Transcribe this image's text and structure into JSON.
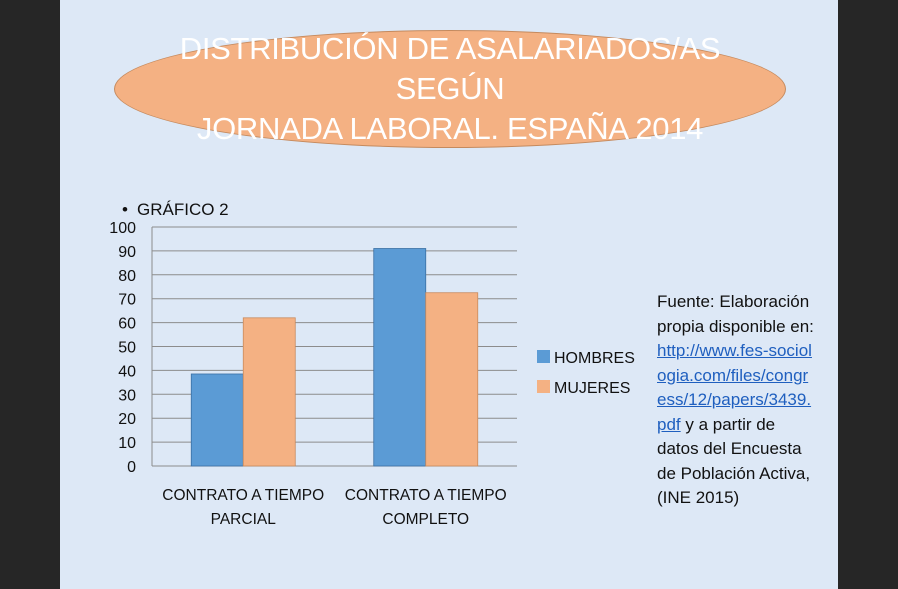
{
  "title": {
    "line1": "DISTRIBUCIÓN DE ASALARIADOS/AS SEGÚN",
    "line2": "JORNADA LABORAL. ESPAÑA 2014"
  },
  "source": {
    "prefix": "Fuente: Elaboración propia disponible en:",
    "link": "http://www.fes-sociologia.com/files/congress/12/papers/3439.pdf",
    "suffix": "y a partir de datos del Encuesta de Población Activa, (INE 2015)"
  },
  "colors": {
    "hombres": "#5b9bd5",
    "mujeres": "#f4b183",
    "title_fill": "#f4b183",
    "background": "#dde8f6"
  },
  "chart_data": {
    "type": "bar",
    "title": "GRÁFICO 2",
    "categories": [
      "CONTRATO A TIEMPO PARCIAL",
      "CONTRATO A TIEMPO COMPLETO"
    ],
    "category_lines": [
      [
        "CONTRATO A TIEMPO",
        "PARCIAL"
      ],
      [
        "CONTRATO A TIEMPO",
        "COMPLETO"
      ]
    ],
    "series": [
      {
        "name": "HOMBRES",
        "values": [
          38.5,
          91
        ]
      },
      {
        "name": "MUJERES",
        "values": [
          62,
          72.5
        ]
      }
    ],
    "ylim": [
      0,
      100
    ],
    "yticks": [
      0,
      10,
      20,
      30,
      40,
      50,
      60,
      70,
      80,
      90,
      100
    ],
    "grid": true,
    "legend": "right"
  }
}
